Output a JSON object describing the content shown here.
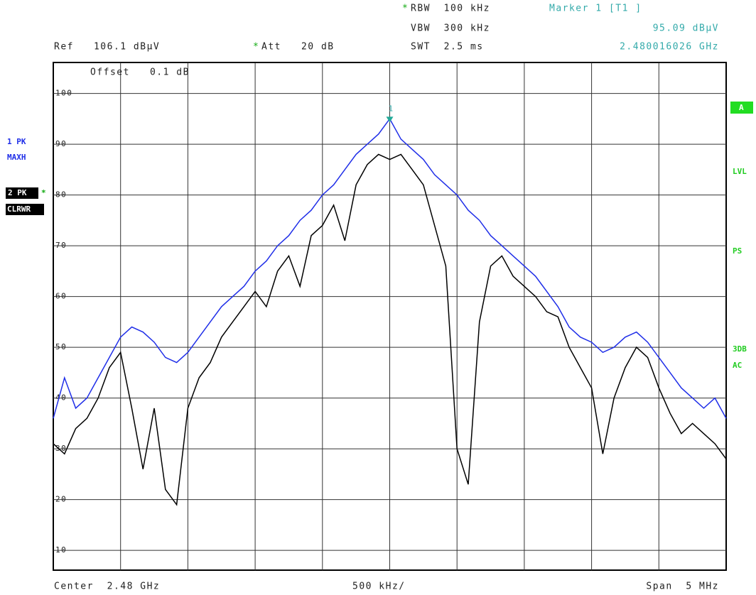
{
  "chart_data": {
    "type": "line",
    "header": {
      "rbw": "RBW  100 kHz",
      "vbw": "VBW  300 kHz",
      "swt": "SWT  2.5 ms",
      "ref": "Ref   106.1 dBµV",
      "att": "Att   20 dB",
      "star": "*",
      "marker": "Marker 1 [T1 ]",
      "marker_level": "95.09 dBµV",
      "marker_freq": "2.480016026 GHz",
      "offset": "Offset   0.1 dB"
    },
    "footer": {
      "center": "Center  2.48 GHz",
      "div": "500 kHz/",
      "span": "Span  5 MHz"
    },
    "side_labels": [
      "A",
      "LVL",
      "PS",
      "3DB",
      "AC"
    ],
    "marker_number": "1",
    "categories": [
      null,
      null,
      null,
      null,
      null,
      null,
      null,
      null,
      null,
      null,
      null,
      null,
      null,
      null,
      null,
      null,
      null,
      null,
      null,
      null,
      null,
      null,
      null,
      null,
      null,
      null,
      null,
      null,
      null,
      null,
      null,
      null,
      null,
      null,
      null,
      null,
      null,
      null,
      null,
      null,
      null,
      null,
      null,
      null,
      null,
      null,
      null,
      null,
      null,
      null,
      null,
      null,
      null,
      null,
      null,
      null,
      null,
      null,
      null,
      null,
      null
    ],
    "series": [
      {
        "name": "1 PK",
        "mode": "MAXH",
        "color": "#1f2ee8",
        "values": [
          36,
          44,
          38,
          40,
          44,
          48,
          52,
          54,
          53,
          51,
          48,
          47,
          49,
          52,
          55,
          58,
          60,
          62,
          65,
          67,
          70,
          72,
          75,
          77,
          80,
          82,
          85,
          88,
          90,
          92,
          95,
          91,
          89,
          87,
          84,
          82,
          80,
          77,
          75,
          72,
          70,
          68,
          66,
          64,
          61,
          58,
          54,
          52,
          51,
          49,
          50,
          52,
          53,
          51,
          48,
          45,
          42,
          40,
          38,
          40,
          36
        ]
      },
      {
        "name": "2 PK",
        "mode": "CLRWR",
        "color": "#000000",
        "values": [
          31,
          29,
          34,
          36,
          40,
          46,
          49,
          38,
          26,
          38,
          22,
          19,
          38,
          44,
          47,
          52,
          55,
          58,
          61,
          58,
          65,
          68,
          62,
          72,
          74,
          78,
          71,
          82,
          86,
          88,
          87,
          88,
          85,
          82,
          74,
          66,
          30,
          23,
          55,
          66,
          68,
          64,
          62,
          60,
          57,
          56,
          50,
          46,
          42,
          29,
          40,
          46,
          50,
          48,
          42,
          37,
          33,
          35,
          33,
          31,
          28
        ]
      }
    ],
    "ylim": [
      6.1,
      106.1
    ],
    "yticks": [
      10,
      20,
      30,
      40,
      50,
      60,
      70,
      80,
      90,
      100
    ],
    "grid": true
  }
}
